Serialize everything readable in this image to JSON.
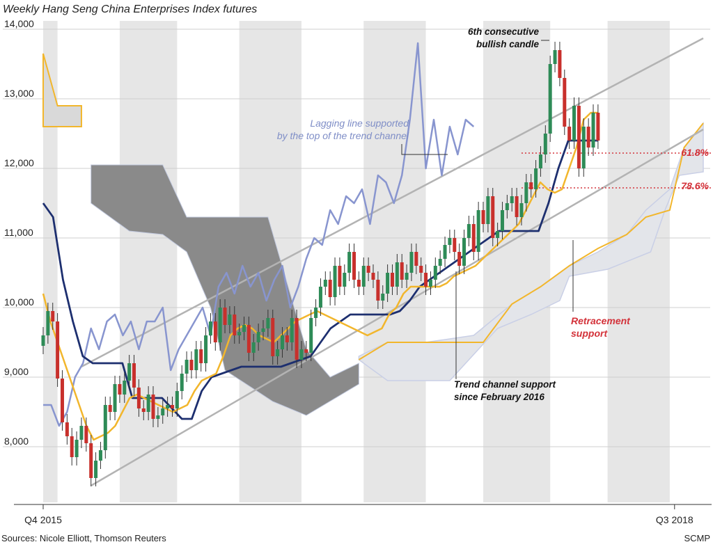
{
  "chart_data": {
    "type": "candlestick",
    "title": "Weekly Hang Seng China Enterprises Index futures",
    "ylim": [
      7300,
      14100
    ],
    "y_ticks": [
      {
        "value": 14000,
        "label": "14,000"
      },
      {
        "value": 13000,
        "label": "13,000"
      },
      {
        "value": 12000,
        "label": "12,000"
      },
      {
        "value": 11000,
        "label": "11,000"
      },
      {
        "value": 10000,
        "label": "10,000"
      },
      {
        "value": 9000,
        "label": "9,000"
      },
      {
        "value": 8000,
        "label": "8,000"
      }
    ],
    "x_labels": [
      {
        "index": 0,
        "label": "Q4 2015"
      },
      {
        "index": 132,
        "label": "Q3 2018"
      }
    ],
    "x_range": [
      0,
      138
    ],
    "stripe_boundaries": [
      0,
      3,
      16,
      28,
      41,
      54,
      67,
      80,
      92,
      106,
      118,
      131,
      138
    ],
    "candles_close": [
      9600,
      9950,
      9800,
      8980,
      8350,
      8150,
      7850,
      8100,
      8300,
      8050,
      7550,
      7800,
      7950,
      8600,
      8500,
      8900,
      8750,
      8950,
      9200,
      8850,
      8550,
      8500,
      8750,
      8400,
      8450,
      8550,
      8600,
      8550,
      8800,
      9050,
      9250,
      9100,
      9400,
      9200,
      9600,
      9800,
      9500,
      10000,
      9750,
      9900,
      9600,
      9650,
      9750,
      9350,
      9500,
      9650,
      9700,
      9850,
      9300,
      9400,
      9600,
      9500,
      9850,
      9250,
      9400,
      9350,
      9850,
      10000,
      10300,
      10400,
      10150,
      10600,
      10300,
      10500,
      10800,
      10400,
      10300,
      10600,
      10500,
      10400,
      10100,
      10200,
      10500,
      10300,
      10650,
      10400,
      10500,
      10800,
      10600,
      10500,
      10300,
      10400,
      10600,
      10700,
      10900,
      11000,
      10800,
      10600,
      11000,
      11200,
      10800,
      11400,
      11200,
      11600,
      11000,
      11100,
      11400,
      11500,
      11600,
      11300,
      11500,
      11800,
      11700,
      12000,
      12200,
      12500,
      13500,
      13700,
      13300,
      12600,
      12400,
      12900,
      12000,
      12600,
      12300,
      12800,
      12400
    ],
    "tenkan": [
      10200,
      9800,
      9500,
      9200,
      8900,
      8600,
      8300,
      8100,
      8150,
      8200,
      8300,
      8500,
      8700,
      8750,
      8700,
      8650,
      8600,
      8550,
      8500,
      8550,
      8600,
      8800,
      8950,
      9000,
      9050,
      9300,
      9600,
      9700,
      9750,
      9700,
      9600,
      9550,
      9500,
      9600,
      9700,
      9800,
      9850,
      9900,
      9950,
      9900,
      9850,
      9800,
      9750,
      9700,
      9650,
      9600,
      9650,
      9700,
      9900,
      10000,
      10200,
      10300,
      10300,
      10300,
      10300,
      10300,
      10350,
      10450,
      10500,
      10550,
      10600,
      10700,
      10800,
      10900,
      11000,
      11100,
      11200,
      11400,
      11600,
      11800,
      11700,
      11650,
      11700,
      12000,
      12300,
      12700,
      12800,
      12800
    ],
    "kijun": [
      11500,
      11300,
      10400,
      9800,
      9300,
      9200,
      9200,
      9200,
      9200,
      8700,
      8700,
      8700,
      8700,
      8550,
      8400,
      8400,
      8800,
      9000,
      9050,
      9100,
      9150,
      9150,
      9150,
      9150,
      9150,
      9200,
      9250,
      9300,
      9500,
      9700,
      9800,
      9900,
      9900,
      9900,
      9900,
      9900,
      9950,
      10100,
      10300,
      10400,
      10500,
      10600,
      10700,
      10800,
      10900,
      11000,
      11100,
      11100,
      11100,
      11100,
      11100,
      11500,
      12000,
      12400,
      12400,
      12400,
      12400
    ],
    "lagging": [
      8600,
      8600,
      8300,
      8500,
      9000,
      9200,
      9700,
      9400,
      9800,
      9900,
      9600,
      9800,
      9400,
      9800,
      9800,
      10000,
      9100,
      9400,
      9600,
      9800,
      10000,
      9600,
      10300,
      10500,
      10200,
      10600,
      10300,
      10500,
      10100,
      10400,
      10600,
      10000,
      10300,
      10700,
      11000,
      10900,
      11400,
      11200,
      11600,
      11500,
      11700,
      11200,
      11900,
      11800,
      11500,
      11900,
      12700,
      13800,
      12000,
      12700,
      11900,
      12600,
      12200,
      12700,
      12600
    ],
    "trend_channel": {
      "lower": {
        "x0": 10,
        "y0": 7440,
        "x1": 138,
        "y1": 12560
      },
      "upper": {
        "x0": 8,
        "y0": 9150,
        "x1": 138,
        "y1": 13870
      }
    },
    "retracement_levels": [
      {
        "label": "61.8%",
        "value": 12220
      },
      {
        "label": "78.6%",
        "value": 11720
      }
    ],
    "annotations": {
      "bullish_candle": [
        "6th consecutive",
        "bullish candle"
      ],
      "lagging_line": [
        "Lagging line supported",
        "by the top of the trend channel"
      ],
      "retracement_support": [
        "Retracement",
        "support"
      ],
      "trend_channel_support": [
        "Trend channel support",
        "since February 2016"
      ]
    },
    "colors": {
      "candle_up": "#2e8b57",
      "candle_down": "#c8302c",
      "tenkan": "#f2b62c",
      "kijun": "#1d2f6f",
      "lagging": "#8895cf",
      "cloud_bearish": "#8a8a8a",
      "cloud_bullish": "#e3e5ea",
      "stripe": "#e6e6e6",
      "trend_line": "#b3b3b3",
      "retracement": "#d3323a"
    }
  },
  "footer": {
    "source": "Sources: Nicole Elliott, Thomson Reuters",
    "brand": "SCMP"
  }
}
